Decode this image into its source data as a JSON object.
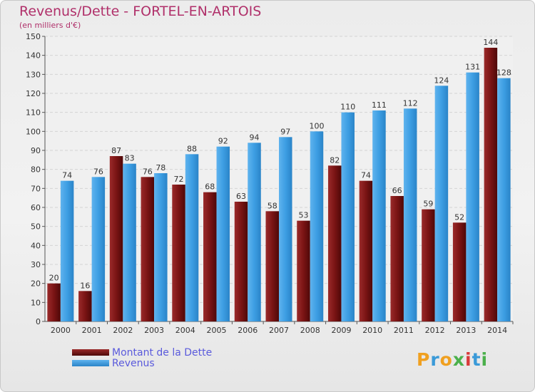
{
  "header": {
    "title": "Revenus/Dette - FORTEL-EN-ARTOIS",
    "subtitle": "(en milliers d'€)"
  },
  "legend": {
    "debt_label": "Montant de la Dette",
    "revenue_label": "Revenus"
  },
  "logo": {
    "text": "Proxiti"
  },
  "colors": {
    "title": "#b0306a",
    "debt": "#7a1414",
    "revenue": "#3d9ee3",
    "legend_text": "#5a5adc"
  },
  "chart_data": {
    "type": "bar",
    "title": "Revenus/Dette - FORTEL-EN-ARTOIS",
    "subtitle": "(en milliers d'€)",
    "categories": [
      "2000",
      "2001",
      "2002",
      "2003",
      "2004",
      "2005",
      "2006",
      "2007",
      "2008",
      "2009",
      "2010",
      "2011",
      "2012",
      "2013",
      "2014"
    ],
    "series": [
      {
        "name": "Montant de la Dette",
        "values": [
          20,
          16,
          87,
          76,
          72,
          68,
          63,
          58,
          53,
          82,
          74,
          66,
          59,
          52,
          144
        ]
      },
      {
        "name": "Revenus",
        "values": [
          74,
          76,
          83,
          78,
          88,
          92,
          94,
          97,
          100,
          110,
          111,
          112,
          124,
          131,
          128
        ]
      }
    ],
    "ylim": [
      0,
      150
    ],
    "yticks": [
      0,
      10,
      20,
      30,
      40,
      50,
      60,
      70,
      80,
      90,
      100,
      110,
      120,
      130,
      140,
      150
    ],
    "grid": true,
    "legend_position": "bottom-left"
  }
}
